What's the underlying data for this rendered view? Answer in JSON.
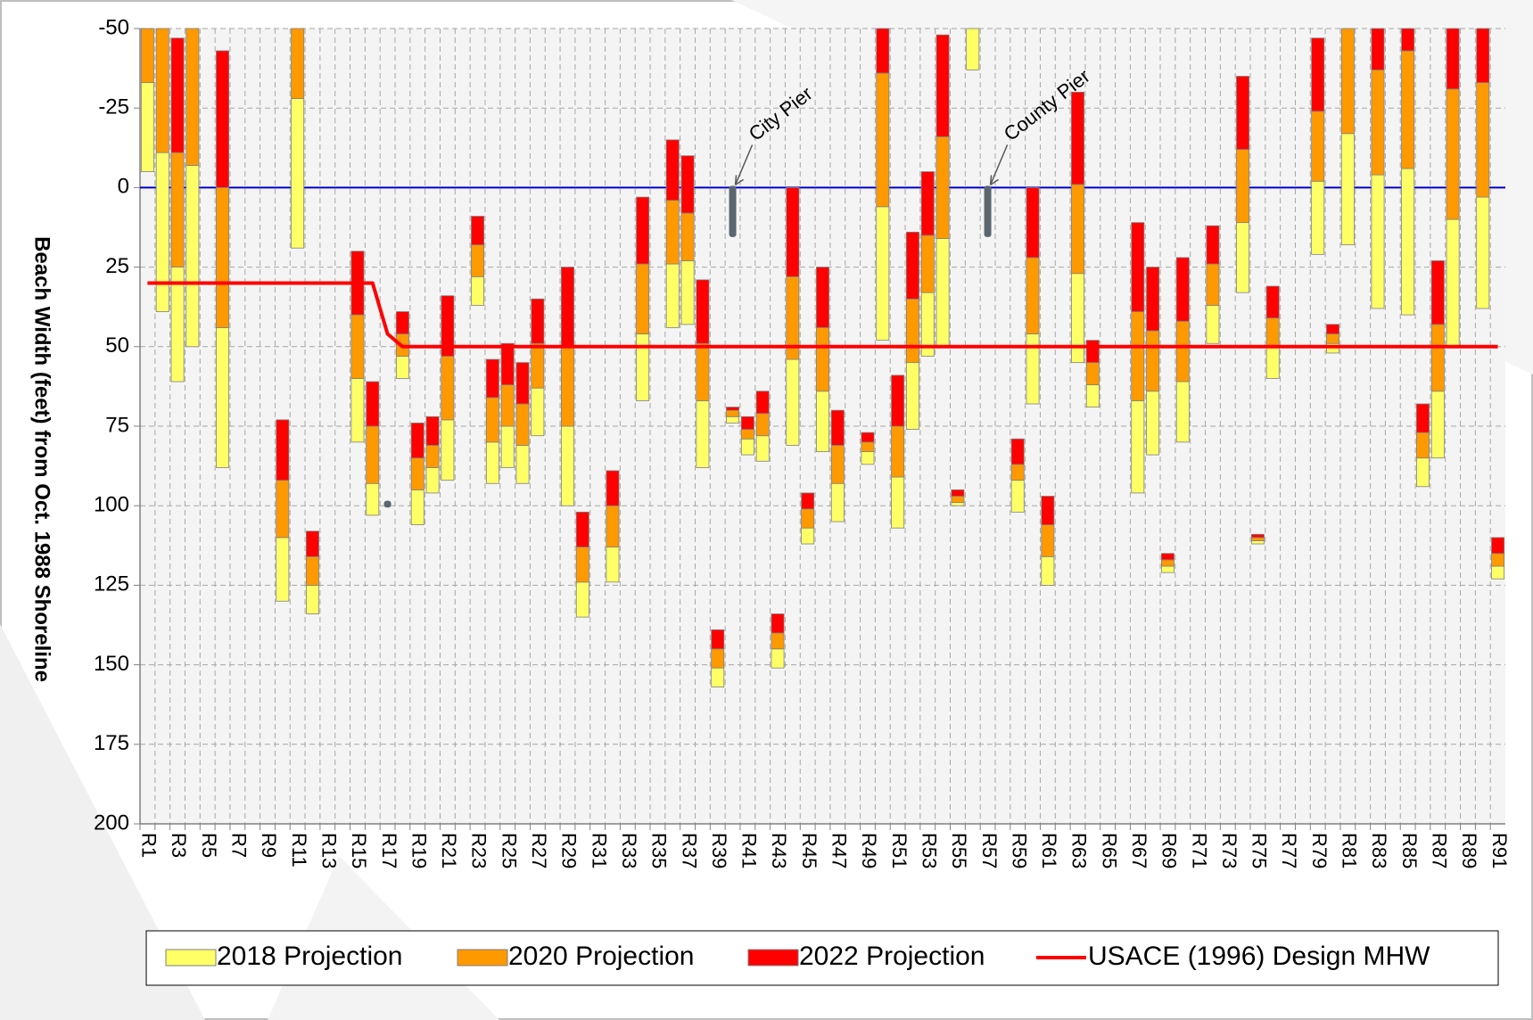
{
  "chart_data": {
    "type": "bar",
    "y_label": "Beach Width (feet) from Oct. 1988 Shoreline",
    "ylim": [
      -50,
      200
    ],
    "y_inverted": true,
    "yticks": [
      -50,
      -25,
      0,
      25,
      50,
      75,
      100,
      125,
      150,
      175,
      200
    ],
    "grid": true,
    "legend": "bottom",
    "reference_line": {
      "value": 0,
      "color": "#0000cc"
    },
    "categories": [
      "R1",
      null,
      "R3",
      null,
      "R5",
      null,
      "R7",
      null,
      "R9",
      null,
      "R11",
      null,
      "R13",
      null,
      "R15",
      null,
      "R17",
      null,
      "R19",
      null,
      "R21",
      null,
      "R23",
      null,
      "R25",
      null,
      "R27",
      null,
      "R29",
      null,
      "R31",
      null,
      "R33",
      null,
      "R35",
      null,
      "R37",
      null,
      "R39",
      null,
      "R41",
      null,
      "R43",
      null,
      "R45",
      null,
      "R47",
      null,
      "R49",
      null,
      "R51",
      null,
      "R53",
      null,
      "R55",
      null,
      "R57",
      null,
      "R59",
      null,
      "R61",
      null,
      "R63",
      null,
      "R65",
      null,
      "R67",
      null,
      "R69",
      null,
      "R71",
      null,
      "R73",
      null,
      "R75",
      null,
      "R77",
      null,
      "R79",
      null,
      "R81",
      null,
      "R83",
      null,
      "R85",
      null,
      "R87",
      null,
      "R89",
      null,
      "R91"
    ],
    "series": [
      {
        "name": "2018 Projection",
        "type": "range_bar",
        "color": "#ffff66",
        "values": [
          [
            -5,
            -33
          ],
          [
            39,
            -11
          ],
          [
            61,
            25
          ],
          [
            50,
            -7
          ],
          null,
          [
            88,
            44
          ],
          null,
          null,
          null,
          [
            130,
            110
          ],
          [
            19,
            -28
          ],
          [
            134,
            125
          ],
          null,
          null,
          [
            80,
            60
          ],
          [
            103,
            93
          ],
          null,
          [
            60,
            53
          ],
          [
            106,
            95
          ],
          [
            96,
            88
          ],
          [
            92,
            73
          ],
          null,
          [
            37,
            28
          ],
          [
            93,
            80
          ],
          [
            88,
            75
          ],
          [
            93,
            81
          ],
          [
            78,
            63
          ],
          null,
          [
            100,
            75
          ],
          [
            135,
            124
          ],
          null,
          [
            124,
            113
          ],
          null,
          [
            67,
            46
          ],
          null,
          [
            44,
            24
          ],
          [
            43,
            23
          ],
          [
            88,
            67
          ],
          [
            157,
            151
          ],
          [
            74,
            72
          ],
          [
            84,
            79
          ],
          [
            86,
            78
          ],
          [
            151,
            145
          ],
          [
            81,
            54
          ],
          [
            112,
            107
          ],
          [
            83,
            64
          ],
          [
            105,
            93
          ],
          null,
          [
            87,
            83
          ],
          [
            48,
            6
          ],
          [
            107,
            91
          ],
          [
            76,
            55
          ],
          [
            53,
            33
          ],
          [
            50,
            16
          ],
          [
            100,
            99
          ],
          [
            -37,
            -50
          ],
          null,
          null,
          [
            102,
            92
          ],
          [
            68,
            46
          ],
          [
            125,
            116
          ],
          null,
          [
            55,
            27
          ],
          [
            69,
            62
          ],
          null,
          null,
          [
            96,
            67
          ],
          [
            84,
            64
          ],
          [
            121,
            119
          ],
          [
            80,
            61
          ],
          null,
          [
            49,
            37
          ],
          null,
          [
            33,
            11
          ],
          [
            112,
            111
          ],
          [
            60,
            50
          ],
          null,
          null,
          [
            21,
            -2
          ],
          [
            52,
            49
          ],
          [
            18,
            -17
          ],
          null,
          [
            38,
            -4
          ],
          null,
          [
            40,
            -6
          ],
          [
            94,
            85
          ],
          [
            85,
            64
          ],
          [
            50,
            10
          ],
          null,
          [
            38,
            3
          ],
          [
            123,
            119
          ]
        ]
      },
      {
        "name": "2020 Projection",
        "type": "range_bar",
        "color": "#ff9900",
        "values": [
          [
            -33,
            -50
          ],
          [
            -11,
            -50
          ],
          [
            25,
            -11
          ],
          [
            -7,
            -50
          ],
          null,
          [
            44,
            0
          ],
          null,
          null,
          null,
          [
            110,
            92
          ],
          [
            -28,
            -50
          ],
          [
            125,
            116
          ],
          null,
          null,
          [
            60,
            40
          ],
          [
            93,
            75
          ],
          null,
          [
            53,
            46
          ],
          [
            95,
            85
          ],
          [
            88,
            81
          ],
          [
            73,
            53
          ],
          null,
          [
            28,
            18
          ],
          [
            80,
            66
          ],
          [
            75,
            62
          ],
          [
            81,
            68
          ],
          [
            63,
            49
          ],
          null,
          [
            75,
            50
          ],
          [
            124,
            113
          ],
          null,
          [
            113,
            100
          ],
          null,
          [
            46,
            24
          ],
          null,
          [
            24,
            4
          ],
          [
            23,
            8
          ],
          [
            67,
            49
          ],
          [
            151,
            145
          ],
          [
            72,
            70
          ],
          [
            79,
            76
          ],
          [
            78,
            71
          ],
          [
            145,
            140
          ],
          [
            54,
            28
          ],
          [
            107,
            101
          ],
          [
            64,
            44
          ],
          [
            93,
            81
          ],
          null,
          [
            83,
            80
          ],
          [
            6,
            -36
          ],
          [
            91,
            75
          ],
          [
            55,
            35
          ],
          [
            33,
            15
          ],
          [
            16,
            -16
          ],
          [
            99,
            97
          ],
          null,
          null,
          null,
          [
            92,
            87
          ],
          [
            46,
            22
          ],
          [
            116,
            106
          ],
          null,
          [
            27,
            -1
          ],
          [
            62,
            55
          ],
          null,
          null,
          [
            67,
            39
          ],
          [
            64,
            45
          ],
          [
            119,
            117
          ],
          [
            61,
            42
          ],
          null,
          [
            37,
            24
          ],
          null,
          [
            11,
            -12
          ],
          [
            111,
            110
          ],
          [
            50,
            41
          ],
          null,
          null,
          [
            -2,
            -24
          ],
          [
            49,
            46
          ],
          [
            -17,
            -50
          ],
          null,
          [
            -4,
            -37
          ],
          null,
          [
            -6,
            -43
          ],
          [
            85,
            77
          ],
          [
            64,
            43
          ],
          [
            10,
            -31
          ],
          null,
          [
            3,
            -33
          ],
          [
            119,
            115
          ]
        ]
      },
      {
        "name": "2022 Projection",
        "type": "range_bar",
        "color": "#ff0000",
        "values": [
          null,
          null,
          [
            -11,
            -47
          ],
          null,
          null,
          [
            0,
            -43
          ],
          null,
          null,
          null,
          [
            92,
            73
          ],
          null,
          [
            116,
            108
          ],
          null,
          null,
          [
            40,
            20
          ],
          [
            75,
            61
          ],
          null,
          [
            46,
            39
          ],
          [
            85,
            74
          ],
          [
            81,
            72
          ],
          [
            53,
            34
          ],
          null,
          [
            18,
            9
          ],
          [
            66,
            54
          ],
          [
            62,
            49
          ],
          [
            68,
            55
          ],
          [
            49,
            35
          ],
          null,
          [
            50,
            25
          ],
          [
            113,
            102
          ],
          null,
          [
            100,
            89
          ],
          null,
          [
            24,
            3
          ],
          null,
          [
            4,
            -15
          ],
          [
            8,
            -10
          ],
          [
            49,
            29
          ],
          [
            145,
            139
          ],
          [
            70,
            69
          ],
          [
            76,
            72
          ],
          [
            71,
            64
          ],
          [
            140,
            134
          ],
          [
            28,
            0
          ],
          [
            101,
            96
          ],
          [
            44,
            25
          ],
          [
            81,
            70
          ],
          null,
          [
            80,
            77
          ],
          [
            -36,
            -50
          ],
          [
            75,
            59
          ],
          [
            35,
            14
          ],
          [
            15,
            -5
          ],
          [
            -16,
            -48
          ],
          [
            97,
            95
          ],
          null,
          null,
          null,
          [
            87,
            79
          ],
          [
            22,
            0
          ],
          [
            106,
            97
          ],
          null,
          [
            -1,
            -30
          ],
          [
            55,
            48
          ],
          null,
          null,
          [
            39,
            11
          ],
          [
            45,
            25
          ],
          [
            117,
            115
          ],
          [
            42,
            22
          ],
          null,
          [
            24,
            12
          ],
          null,
          [
            -12,
            -35
          ],
          [
            110,
            109
          ],
          [
            41,
            31
          ],
          null,
          null,
          [
            -24,
            -47
          ],
          [
            46,
            43
          ],
          null,
          null,
          [
            -37,
            -50
          ],
          null,
          [
            -43,
            -50
          ],
          [
            77,
            68
          ],
          [
            43,
            23
          ],
          [
            -31,
            -50
          ],
          null,
          [
            -33,
            -50
          ],
          [
            115,
            110
          ]
        ]
      },
      {
        "name": "USACE (1996) Design MHW",
        "type": "line",
        "color": "#ff0000",
        "values": [
          30,
          30,
          30,
          30,
          30,
          30,
          30,
          30,
          30,
          30,
          30,
          30,
          30,
          30,
          30,
          30,
          46,
          50,
          50,
          50,
          50,
          50,
          50,
          50,
          50,
          50,
          50,
          50,
          50,
          50,
          50,
          50,
          50,
          50,
          50,
          50,
          50,
          50,
          50,
          50,
          50,
          50,
          50,
          50,
          50,
          50,
          50,
          50,
          50,
          50,
          50,
          50,
          50,
          50,
          50,
          50,
          50,
          50,
          50,
          50,
          50,
          50,
          50,
          50,
          50,
          50,
          50,
          50,
          50,
          50,
          50,
          50,
          50,
          50,
          50,
          50,
          50,
          50,
          50,
          50,
          50,
          50,
          50,
          50,
          50,
          50,
          50,
          50,
          50,
          50,
          50
        ]
      }
    ],
    "markers": {
      "color": "#5b6670",
      "values": [
        null,
        null,
        null,
        null,
        null,
        null,
        null,
        null,
        null,
        null,
        null,
        null,
        null,
        null,
        null,
        null,
        [
          99,
          100
        ],
        null,
        null,
        null,
        null,
        null,
        null,
        null,
        null,
        null,
        null,
        null,
        null,
        null,
        null,
        null,
        null,
        null,
        null,
        null,
        null,
        null,
        null,
        [
          0,
          15
        ],
        null,
        null,
        null,
        null,
        null,
        null,
        null,
        null,
        null,
        null,
        null,
        null,
        null,
        null,
        null,
        null,
        [
          0,
          15
        ],
        null,
        null,
        null,
        null,
        null,
        null,
        null,
        null,
        null,
        null,
        null,
        null,
        null,
        null,
        null,
        null,
        null,
        null,
        null,
        null,
        null,
        null,
        null,
        null,
        null,
        null,
        null,
        null,
        null,
        null,
        null,
        null,
        null,
        null
      ]
    },
    "annotations": [
      {
        "text": "City Pier",
        "x": 39
      },
      {
        "text": "County Pier",
        "x": 56
      }
    ]
  }
}
